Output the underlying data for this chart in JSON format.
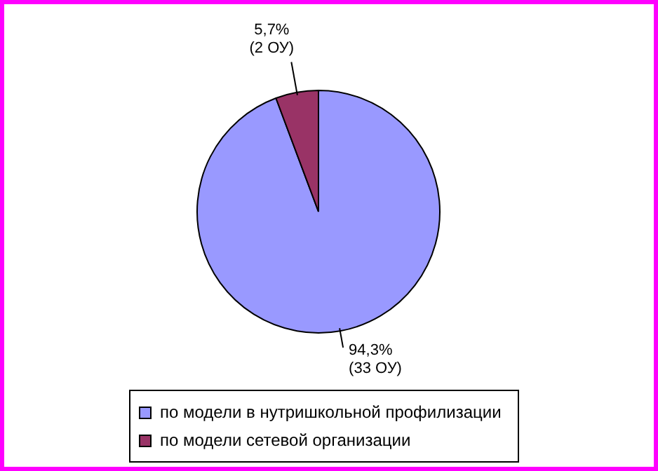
{
  "chart_data": {
    "type": "pie",
    "categories": [
      "по модели в нутришкольной профилизации",
      "по модели сетевой организации"
    ],
    "values": [
      94.3,
      5.7
    ],
    "colors": [
      "#9999ff",
      "#993366"
    ],
    "value_labels": [
      "94,3%\n(33 ОУ)",
      "5,7%\n(2 ОУ)"
    ],
    "legend": "bottom"
  }
}
